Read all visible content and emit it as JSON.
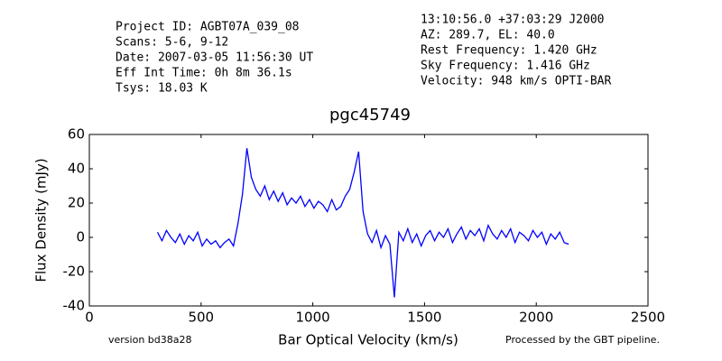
{
  "chart_data": {
    "type": "line",
    "info_left": [
      "Project ID: AGBT07A_039_08",
      "Scans: 5-6, 9-12",
      "Date: 2007-03-05 11:56:30 UT",
      "Eff Int Time: 0h 8m 36.1s",
      "Tsys: 18.03 K"
    ],
    "info_right": [
      "13:10:56.0 +37:03:29 J2000",
      "AZ: 289.7, EL: 40.0",
      "Rest Frequency:   1.420 GHz",
      "Sky Frequency:    1.416 GHz",
      "Velocity: 948 km/s OPTI-BAR"
    ],
    "title": "pgc45749",
    "x_label": "Bar Optical Velocity (km/s)",
    "y_label": "Flux Density (mJy)",
    "footer_left": "version bd38a28",
    "footer_right": "Processed by the GBT pipeline.",
    "footer_right_color": "#e84a4a",
    "x": [
      305,
      325,
      345,
      365,
      385,
      405,
      425,
      445,
      465,
      485,
      505,
      525,
      545,
      565,
      585,
      605,
      625,
      645,
      665,
      685,
      705,
      725,
      745,
      765,
      785,
      805,
      825,
      845,
      865,
      885,
      905,
      925,
      945,
      965,
      985,
      1005,
      1025,
      1045,
      1065,
      1085,
      1105,
      1125,
      1145,
      1165,
      1185,
      1205,
      1225,
      1245,
      1265,
      1285,
      1305,
      1325,
      1345,
      1365,
      1385,
      1405,
      1425,
      1445,
      1465,
      1485,
      1505,
      1525,
      1545,
      1565,
      1585,
      1605,
      1625,
      1645,
      1665,
      1685,
      1705,
      1725,
      1745,
      1765,
      1785,
      1805,
      1825,
      1845,
      1865,
      1885,
      1905,
      1925,
      1945,
      1965,
      1985,
      2005,
      2025,
      2045,
      2065,
      2085,
      2105,
      2125,
      2145
    ],
    "series": [
      {
        "color": "#0000ff",
        "values": [
          3,
          -2,
          4,
          0,
          -3,
          2,
          -4,
          1,
          -2,
          3,
          -5,
          -1,
          -4,
          -2,
          -6,
          -3,
          -1,
          -5,
          8,
          25,
          52,
          35,
          28,
          24,
          30,
          22,
          27,
          21,
          26,
          19,
          23,
          20,
          24,
          18,
          22,
          17,
          21,
          19,
          15,
          22,
          16,
          18,
          24,
          28,
          38,
          50,
          15,
          2,
          -3,
          4,
          -6,
          1,
          -4,
          -35,
          3,
          -2,
          5,
          -3,
          2,
          -5,
          1,
          4,
          -2,
          3,
          0,
          5,
          -3,
          2,
          6,
          -1,
          4,
          1,
          5,
          -2,
          7,
          2,
          -1,
          4,
          0,
          5,
          -3,
          3,
          1,
          -2,
          4,
          0,
          3,
          -4,
          2,
          -1,
          3,
          -3,
          -4
        ]
      }
    ],
    "xlim": [
      0,
      2500
    ],
    "xticks": [
      0,
      500,
      1000,
      1500,
      2000,
      2500
    ],
    "ylim": [
      -40,
      60
    ],
    "yticks": [
      -40,
      -20,
      0,
      20,
      40,
      60
    ]
  }
}
